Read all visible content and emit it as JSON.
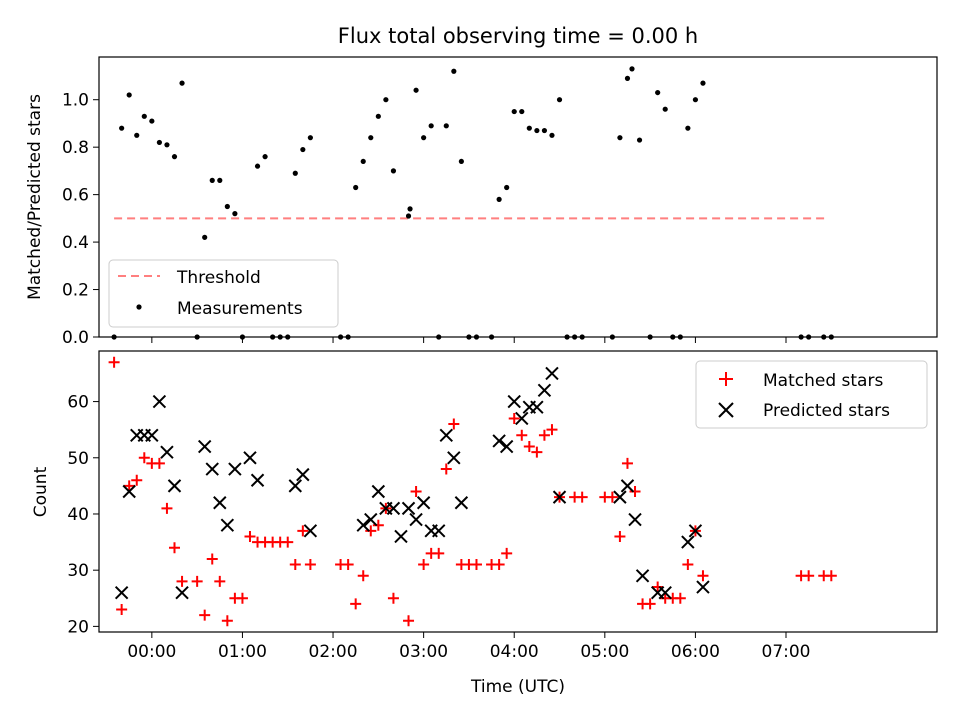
{
  "chart_data": [
    {
      "type": "scatter",
      "title": "Flux total observing time = 0.00 h",
      "xlabel": "",
      "ylabel": "Matched/Predicted stars",
      "xlim": [
        -35,
        520
      ],
      "ylim": [
        0,
        1.18
      ],
      "yticks": [
        0.0,
        0.2,
        0.4,
        0.6,
        0.8,
        1.0
      ],
      "ytick_labels": [
        "0.0",
        "0.2",
        "0.4",
        "0.6",
        "0.8",
        "1.0"
      ],
      "xticks": [
        0,
        60,
        120,
        180,
        240,
        300,
        360,
        420
      ],
      "grid": false,
      "legend": {
        "position": "lower-left",
        "entries": [
          {
            "label": "Threshold",
            "style": "dashed-line",
            "color": "#ff7f7f"
          },
          {
            "label": "Measurements",
            "style": "dot",
            "color": "#000000"
          }
        ]
      },
      "threshold": {
        "name": "Threshold",
        "y": 0.5,
        "x": [
          -25,
          448
        ],
        "color": "#ff7f7f"
      },
      "series": [
        {
          "name": "Measurements",
          "color": "#000000",
          "points": [
            [
              -25,
              0
            ],
            [
              -20,
              0.88
            ],
            [
              -15,
              1.02
            ],
            [
              -10,
              0.85
            ],
            [
              -5,
              0.93
            ],
            [
              0,
              0.91
            ],
            [
              5,
              0.82
            ],
            [
              10,
              0.81
            ],
            [
              15,
              0.76
            ],
            [
              20,
              1.07
            ],
            [
              30,
              0
            ],
            [
              35,
              0.42
            ],
            [
              40,
              0.66
            ],
            [
              45,
              0.66
            ],
            [
              50,
              0.55
            ],
            [
              55,
              0.52
            ],
            [
              60,
              0
            ],
            [
              70,
              0.72
            ],
            [
              75,
              0.76
            ],
            [
              80,
              0
            ],
            [
              85,
              0
            ],
            [
              90,
              0
            ],
            [
              95,
              0.69
            ],
            [
              100,
              0.79
            ],
            [
              105,
              0.84
            ],
            [
              125,
              0
            ],
            [
              130,
              0
            ],
            [
              135,
              0.63
            ],
            [
              140,
              0.74
            ],
            [
              145,
              0.84
            ],
            [
              150,
              0.93
            ],
            [
              155,
              1.0
            ],
            [
              160,
              0.7
            ],
            [
              170,
              0.51
            ],
            [
              171,
              0.54
            ],
            [
              175,
              1.04
            ],
            [
              180,
              0.84
            ],
            [
              185,
              0.89
            ],
            [
              190,
              0
            ],
            [
              195,
              0.89
            ],
            [
              200,
              1.12
            ],
            [
              205,
              0.74
            ],
            [
              210,
              0
            ],
            [
              215,
              0
            ],
            [
              225,
              0
            ],
            [
              230,
              0.58
            ],
            [
              235,
              0.63
            ],
            [
              240,
              0.95
            ],
            [
              245,
              0.95
            ],
            [
              250,
              0.88
            ],
            [
              255,
              0.87
            ],
            [
              260,
              0.87
            ],
            [
              265,
              0.85
            ],
            [
              270,
              1.0
            ],
            [
              275,
              0
            ],
            [
              280,
              0
            ],
            [
              285,
              0
            ],
            [
              305,
              0
            ],
            [
              310,
              0.84
            ],
            [
              315,
              1.09
            ],
            [
              318,
              1.13
            ],
            [
              323,
              0.83
            ],
            [
              330,
              0
            ],
            [
              335,
              1.03
            ],
            [
              340,
              0.96
            ],
            [
              345,
              0
            ],
            [
              350,
              0
            ],
            [
              355,
              0.88
            ],
            [
              360,
              1.0
            ],
            [
              365,
              1.07
            ],
            [
              430,
              0
            ],
            [
              435,
              0
            ],
            [
              445,
              0
            ],
            [
              450,
              0
            ]
          ]
        }
      ]
    },
    {
      "type": "scatter",
      "title": "",
      "xlabel": "Time (UTC)",
      "ylabel": "Count",
      "xlim": [
        -35,
        520
      ],
      "ylim": [
        19,
        69
      ],
      "yticks": [
        20,
        30,
        40,
        50,
        60
      ],
      "ytick_labels": [
        "20",
        "30",
        "40",
        "50",
        "60"
      ],
      "xticks": [
        0,
        60,
        120,
        180,
        240,
        300,
        360,
        420
      ],
      "xtick_labels": [
        "00:00",
        "01:00",
        "02:00",
        "03:00",
        "04:00",
        "05:00",
        "06:00",
        "07:00"
      ],
      "grid": false,
      "legend": {
        "position": "top-right",
        "entries": [
          {
            "label": "Matched stars",
            "style": "plus",
            "color": "#ff0000"
          },
          {
            "label": "Predicted stars",
            "style": "x",
            "color": "#000000"
          }
        ]
      },
      "series": [
        {
          "name": "Matched stars",
          "marker": "plus",
          "color": "#ff0000",
          "points": [
            [
              -25,
              67
            ],
            [
              -20,
              23
            ],
            [
              -15,
              45
            ],
            [
              -10,
              46
            ],
            [
              -5,
              50
            ],
            [
              0,
              49
            ],
            [
              5,
              49
            ],
            [
              10,
              41
            ],
            [
              15,
              34
            ],
            [
              20,
              28
            ],
            [
              30,
              28
            ],
            [
              35,
              22
            ],
            [
              40,
              32
            ],
            [
              45,
              28
            ],
            [
              50,
              21
            ],
            [
              55,
              25
            ],
            [
              60,
              25
            ],
            [
              65,
              36
            ],
            [
              70,
              35
            ],
            [
              75,
              35
            ],
            [
              80,
              35
            ],
            [
              85,
              35
            ],
            [
              90,
              35
            ],
            [
              95,
              31
            ],
            [
              100,
              37
            ],
            [
              105,
              31
            ],
            [
              125,
              31
            ],
            [
              130,
              31
            ],
            [
              135,
              24
            ],
            [
              140,
              29
            ],
            [
              145,
              37
            ],
            [
              150,
              38
            ],
            [
              155,
              41
            ],
            [
              160,
              25
            ],
            [
              170,
              21
            ],
            [
              175,
              44
            ],
            [
              180,
              31
            ],
            [
              185,
              33
            ],
            [
              190,
              33
            ],
            [
              195,
              48
            ],
            [
              200,
              56
            ],
            [
              205,
              31
            ],
            [
              210,
              31
            ],
            [
              215,
              31
            ],
            [
              225,
              31
            ],
            [
              230,
              31
            ],
            [
              235,
              33
            ],
            [
              240,
              57
            ],
            [
              245,
              54
            ],
            [
              250,
              52
            ],
            [
              255,
              51
            ],
            [
              260,
              54
            ],
            [
              265,
              55
            ],
            [
              270,
              43
            ],
            [
              280,
              43
            ],
            [
              285,
              43
            ],
            [
              300,
              43
            ],
            [
              305,
              43
            ],
            [
              310,
              36
            ],
            [
              315,
              49
            ],
            [
              320,
              44
            ],
            [
              325,
              24
            ],
            [
              330,
              24
            ],
            [
              335,
              27
            ],
            [
              340,
              25
            ],
            [
              345,
              25
            ],
            [
              350,
              25
            ],
            [
              355,
              31
            ],
            [
              360,
              37
            ],
            [
              365,
              29
            ],
            [
              430,
              29
            ],
            [
              435,
              29
            ],
            [
              445,
              29
            ],
            [
              450,
              29
            ]
          ]
        },
        {
          "name": "Predicted stars",
          "marker": "x",
          "color": "#000000",
          "points": [
            [
              -20,
              26
            ],
            [
              -15,
              44
            ],
            [
              -10,
              54
            ],
            [
              -5,
              54
            ],
            [
              0,
              54
            ],
            [
              5,
              60
            ],
            [
              10,
              51
            ],
            [
              15,
              45
            ],
            [
              20,
              26
            ],
            [
              35,
              52
            ],
            [
              40,
              48
            ],
            [
              45,
              42
            ],
            [
              50,
              38
            ],
            [
              55,
              48
            ],
            [
              65,
              50
            ],
            [
              70,
              46
            ],
            [
              95,
              45
            ],
            [
              100,
              47
            ],
            [
              105,
              37
            ],
            [
              140,
              38
            ],
            [
              145,
              39
            ],
            [
              150,
              44
            ],
            [
              155,
              41
            ],
            [
              160,
              41
            ],
            [
              165,
              36
            ],
            [
              170,
              41
            ],
            [
              175,
              39
            ],
            [
              180,
              42
            ],
            [
              185,
              37
            ],
            [
              190,
              37
            ],
            [
              195,
              54
            ],
            [
              200,
              50
            ],
            [
              205,
              42
            ],
            [
              230,
              53
            ],
            [
              235,
              52
            ],
            [
              240,
              60
            ],
            [
              245,
              57
            ],
            [
              250,
              59
            ],
            [
              255,
              59
            ],
            [
              260,
              62
            ],
            [
              265,
              65
            ],
            [
              270,
              43
            ],
            [
              310,
              43
            ],
            [
              315,
              45
            ],
            [
              320,
              39
            ],
            [
              325,
              29
            ],
            [
              335,
              26
            ],
            [
              340,
              26
            ],
            [
              355,
              35
            ],
            [
              360,
              37
            ],
            [
              365,
              27
            ]
          ]
        }
      ]
    }
  ]
}
